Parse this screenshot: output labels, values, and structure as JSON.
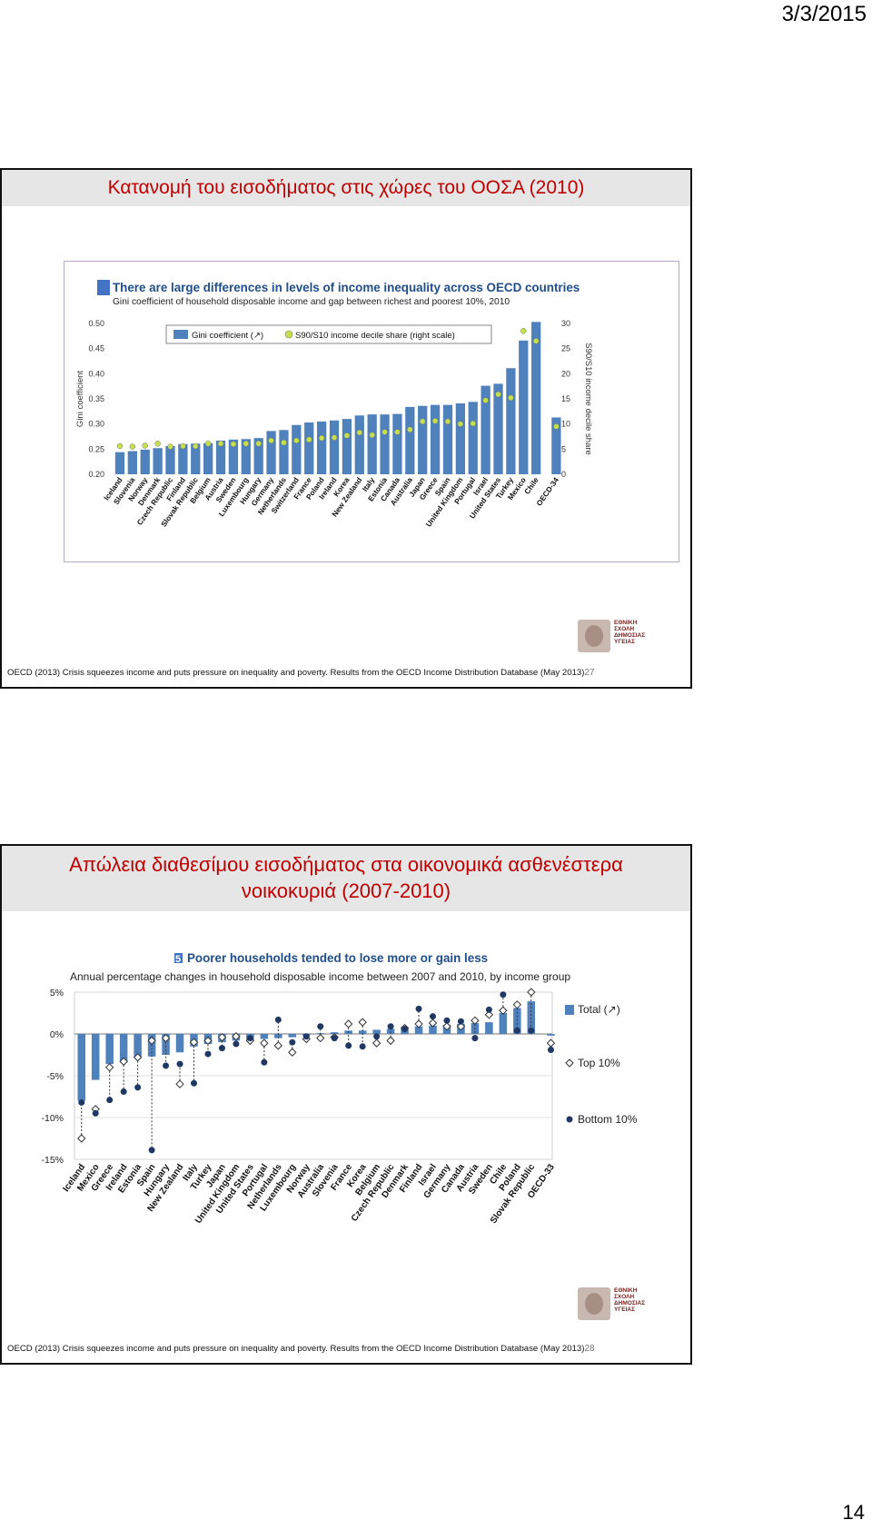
{
  "page": {
    "date": "3/3/2015",
    "number": "14"
  },
  "slide1": {
    "title": "Κατανομή του εισοδήματος στις χώρες του ΟΟΣΑ (2010)",
    "footer": "OECD (2013) Crisis squeezes income and puts pressure on inequality and poverty. Results from the OECD Income Distribution Database (May 2013)",
    "slide_number": "27",
    "logo_lines": [
      "ΕΘΝΙΚΗ",
      "ΣΧΟΛΗ",
      "ΔΗΜΟΣΙΑΣ",
      "ΥΓΕΙΑΣ"
    ]
  },
  "slide2": {
    "title_line1": "Απώλεια διαθεσίμου εισοδήματος στα οικονομικά ασθενέστερα",
    "title_line2": "νοικοκυριά (2007-2010)",
    "footer": "OECD (2013) Crisis squeezes income and puts pressure on inequality and poverty. Results from the OECD Income Distribution Database (May 2013)",
    "slide_number": "28",
    "logo_lines": [
      "ΕΘΝΙΚΗ",
      "ΣΧΟΛΗ",
      "ΔΗΜΟΣΙΑΣ",
      "ΥΓΕΙΑΣ"
    ]
  },
  "colors": {
    "bar": "#4f81bd",
    "green": "#c5e04a",
    "navy": "#1f3864",
    "title_red": "#c00000"
  },
  "chart_data": [
    {
      "type": "bar",
      "figure_number": "4",
      "title": "There are large differences in levels of income inequality across OECD countries",
      "subtitle": "Gini coefficient of household disposable income and gap between richest and poorest 10%, 2010",
      "ylabel": "Gini coefficient",
      "y2label": "S90/S10 income decile share",
      "ylim": [
        0.2,
        0.5
      ],
      "y2lim": [
        0,
        30
      ],
      "yticks": [
        "0.50",
        "0.45",
        "0.40",
        "0.35",
        "0.30",
        "0.25",
        "0.20"
      ],
      "y2ticks": [
        "30",
        "25",
        "20",
        "15",
        "10",
        "5",
        "0"
      ],
      "legend": [
        "Gini coefficient (↗)",
        "S90/S10 income decile share (right scale)"
      ],
      "categories": [
        "Iceland",
        "Slovenia",
        "Norway",
        "Denmark",
        "Czech Republic",
        "Finland",
        "Slovak Republic",
        "Belgium",
        "Austria",
        "Sweden",
        "Luxembourg",
        "Hungary",
        "Germany",
        "Netherlands",
        "Switzerland",
        "France",
        "Poland",
        "Ireland",
        "Korea",
        "New Zealand",
        "Italy",
        "Estonia",
        "Canada",
        "Australia",
        "Japan",
        "Greece",
        "Spain",
        "United Kingdom",
        "Portugal",
        "Israel",
        "United States",
        "Turkey",
        "Mexico",
        "Chile",
        "OECD-34"
      ],
      "series": [
        {
          "name": "Gini coefficient (↗)",
          "values": [
            0.244,
            0.246,
            0.249,
            0.252,
            0.256,
            0.26,
            0.261,
            0.262,
            0.267,
            0.269,
            0.27,
            0.272,
            0.286,
            0.288,
            0.298,
            0.303,
            0.305,
            0.307,
            0.31,
            0.317,
            0.319,
            0.319,
            0.32,
            0.334,
            0.336,
            0.338,
            0.338,
            0.341,
            0.344,
            0.376,
            0.38,
            0.411,
            0.466,
            0.503,
            0.313
          ]
        },
        {
          "name": "S90/S10 income decile share (right scale)",
          "values": [
            5.6,
            5.5,
            5.7,
            6.1,
            5.5,
            5.6,
            5.6,
            6.1,
            6.1,
            6.0,
            6.1,
            6.1,
            6.7,
            6.3,
            6.7,
            6.9,
            7.2,
            7.3,
            7.7,
            8.3,
            7.8,
            8.4,
            8.4,
            8.9,
            10.5,
            10.6,
            10.5,
            10.0,
            10.1,
            14.7,
            15.9,
            15.2,
            28.5,
            26.5,
            9.5
          ]
        }
      ]
    },
    {
      "type": "bar",
      "figure_number": "5",
      "title": "Poorer households tended to lose more or gain less",
      "subtitle": "Annual percentage changes in household disposable income between 2007 and 2010, by income group",
      "ylim": [
        -15,
        5
      ],
      "yticks": [
        "5%",
        "0%",
        "-5%",
        "-10%",
        "-15%"
      ],
      "legend": [
        "Total (↗)",
        "Top 10%",
        "Bottom 10%"
      ],
      "categories": [
        "Iceland",
        "Mexico",
        "Greece",
        "Ireland",
        "Estonia",
        "Spain",
        "Hungary",
        "New Zealand",
        "Italy",
        "Turkey",
        "Japan",
        "United Kingdom",
        "United States",
        "Portugal",
        "Netherlands",
        "Luxembourg",
        "Norway",
        "Australia",
        "Slovenia",
        "France",
        "Korea",
        "Belgium",
        "Czech Republic",
        "Denmark",
        "Finland",
        "Israel",
        "Germany",
        "Canada",
        "Austria",
        "Sweden",
        "Chile",
        "Poland",
        "Slovak Republic",
        "OECD-33"
      ],
      "series": [
        {
          "name": "Total (↗)",
          "values": [
            -8.0,
            -5.5,
            -3.6,
            -3.4,
            -2.8,
            -2.7,
            -2.5,
            -2.2,
            -1.5,
            -1.2,
            -1.0,
            -0.8,
            -0.7,
            -0.6,
            -0.5,
            -0.4,
            -0.2,
            0.1,
            0.2,
            0.4,
            0.4,
            0.5,
            0.6,
            0.6,
            0.9,
            1.0,
            1.1,
            1.2,
            1.3,
            1.4,
            2.5,
            3.1,
            3.9,
            -0.2
          ]
        },
        {
          "name": "Top 10%",
          "values": [
            -12.5,
            -9.0,
            -4.0,
            -3.3,
            -2.8,
            -0.8,
            -0.5,
            -6.0,
            -1.0,
            -0.8,
            -0.4,
            -0.3,
            -0.8,
            -1.1,
            -1.4,
            -2.2,
            -0.6,
            -0.5,
            -0.4,
            1.2,
            1.4,
            -1.1,
            -0.8,
            0.7,
            1.2,
            1.3,
            0.9,
            0.9,
            1.6,
            2.3,
            2.8,
            3.5,
            5.0,
            -1.1
          ]
        },
        {
          "name": "Bottom 10%",
          "values": [
            -8.2,
            -9.5,
            -7.9,
            -6.9,
            -6.4,
            -13.9,
            -3.8,
            -3.6,
            -5.9,
            -2.4,
            -1.7,
            -1.2,
            -0.5,
            -3.4,
            1.7,
            -1.0,
            -0.3,
            0.9,
            -0.5,
            -1.4,
            -1.5,
            -0.3,
            0.9,
            0.6,
            3.0,
            2.1,
            1.6,
            1.5,
            -0.5,
            2.9,
            4.7,
            0.4,
            0.4,
            -1.9
          ]
        }
      ]
    }
  ]
}
